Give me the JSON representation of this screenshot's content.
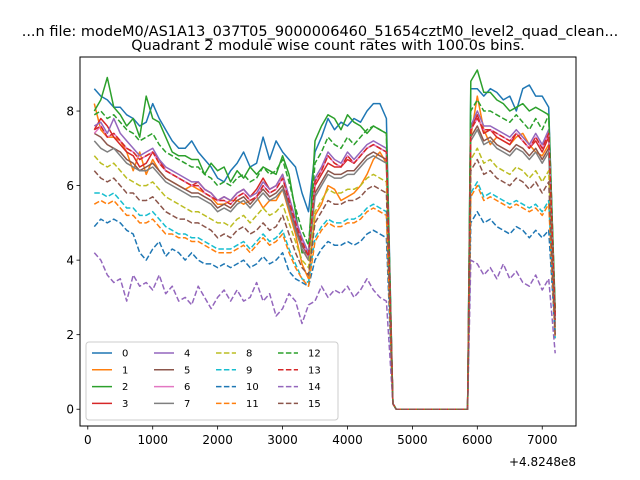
{
  "figure": {
    "suptitle": "...n file: modeM0/AS1A13_037T05_9000006460_51654cztM0_level2_quad_clean...",
    "title": "Quadrant 2 module wise count rates with 100.0s bins."
  },
  "chart_data": {
    "type": "line",
    "title": "Quadrant 2 module wise count rates with 100.0s bins.",
    "xlabel": "",
    "ylabel": "",
    "x_offset_label": "+4.8248e8",
    "xlim": [
      -120,
      7520
    ],
    "ylim": [
      -0.45,
      9.45
    ],
    "xticks": [
      0,
      1000,
      2000,
      3000,
      4000,
      5000,
      6000,
      7000
    ],
    "yticks": [
      0,
      2,
      4,
      6,
      8
    ],
    "grid": false,
    "legend": {
      "placement": "lower-left",
      "columns": 4
    },
    "x": [
      100,
      200,
      300,
      400,
      500,
      600,
      700,
      800,
      900,
      1000,
      1100,
      1200,
      1300,
      1400,
      1500,
      1600,
      1700,
      1800,
      1900,
      2000,
      2100,
      2200,
      2300,
      2400,
      2500,
      2600,
      2700,
      2800,
      2900,
      3000,
      3100,
      3200,
      3300,
      3400,
      3500,
      3600,
      3700,
      3800,
      3900,
      4000,
      4100,
      4200,
      4300,
      4400,
      4500,
      4600,
      4700,
      4750,
      4800,
      5800,
      5850,
      5900,
      6000,
      6100,
      6200,
      6300,
      6400,
      6500,
      6600,
      6700,
      6800,
      6900,
      7000,
      7100,
      7200
    ],
    "gaps": [],
    "series": [
      {
        "name": "0",
        "color": "#1f77b4",
        "dash": "solid",
        "values": [
          8.6,
          8.4,
          8.3,
          8.1,
          8.1,
          7.9,
          7.8,
          7.6,
          7.7,
          8.2,
          7.8,
          7.5,
          7.2,
          7.0,
          7.0,
          7.2,
          6.9,
          6.7,
          6.5,
          6.2,
          6.1,
          6.4,
          6.6,
          6.9,
          6.5,
          6.6,
          7.3,
          6.7,
          7.2,
          6.9,
          6.7,
          6.5,
          5.8,
          5.3,
          6.9,
          7.3,
          7.8,
          7.5,
          7.7,
          7.6,
          7.8,
          7.7,
          8.0,
          8.2,
          8.2,
          7.8,
          0.15,
          0.0,
          0.0,
          0.0,
          0.0,
          8.6,
          8.6,
          8.4,
          8.6,
          8.5,
          8.3,
          8.4,
          8.0,
          8.6,
          8.7,
          8.4,
          8.4,
          8.1,
          2.5
        ]
      },
      {
        "name": "1",
        "color": "#ff7f0e",
        "dash": "solid",
        "values": [
          8.2,
          7.5,
          7.3,
          7.3,
          7.2,
          6.9,
          6.4,
          6.9,
          6.3,
          6.7,
          6.4,
          6.2,
          6.1,
          6.0,
          5.9,
          6.0,
          5.9,
          5.8,
          5.7,
          5.5,
          5.5,
          5.6,
          5.6,
          5.5,
          5.6,
          5.7,
          5.4,
          5.6,
          5.6,
          5.9,
          5.3,
          4.7,
          3.9,
          3.5,
          5.2,
          5.5,
          6.0,
          5.9,
          5.6,
          5.7,
          5.8,
          6.0,
          6.3,
          6.7,
          6.9,
          6.6,
          0.15,
          0.0,
          0.0,
          0.0,
          0.0,
          7.3,
          8.4,
          7.5,
          7.1,
          7.3,
          7.2,
          7.1,
          7.3,
          7.4,
          7.1,
          6.9,
          6.8,
          7.1,
          2.6
        ]
      },
      {
        "name": "2",
        "color": "#2ca02c",
        "dash": "solid",
        "values": [
          8.0,
          8.3,
          8.9,
          8.1,
          7.9,
          7.6,
          7.8,
          7.3,
          8.4,
          7.8,
          7.7,
          7.3,
          6.9,
          6.8,
          6.8,
          6.7,
          6.7,
          6.3,
          6.6,
          6.4,
          6.5,
          6.1,
          6.4,
          6.2,
          6.5,
          6.3,
          6.5,
          6.4,
          6.3,
          6.8,
          6.3,
          5.3,
          4.2,
          4.2,
          7.2,
          7.6,
          7.9,
          7.8,
          7.5,
          7.9,
          7.7,
          7.6,
          7.4,
          7.6,
          7.5,
          7.4,
          0.15,
          0.0,
          0.0,
          0.0,
          0.0,
          8.8,
          9.1,
          8.5,
          8.5,
          8.3,
          8.2,
          8.0,
          8.1,
          8.2,
          8.0,
          8.1,
          8.0,
          7.9,
          2.7
        ]
      },
      {
        "name": "3",
        "color": "#d62728",
        "dash": "solid",
        "values": [
          7.5,
          7.8,
          7.6,
          7.3,
          7.1,
          6.9,
          6.8,
          6.5,
          6.6,
          6.9,
          6.7,
          6.4,
          6.3,
          6.2,
          6.1,
          6.0,
          6.1,
          5.9,
          5.8,
          5.6,
          5.7,
          5.6,
          5.8,
          5.9,
          5.7,
          5.9,
          6.2,
          5.9,
          6.0,
          6.3,
          5.7,
          5.0,
          4.3,
          4.0,
          6.0,
          6.3,
          6.6,
          6.5,
          6.5,
          6.7,
          6.6,
          6.8,
          7.0,
          7.1,
          7.0,
          6.9,
          0.15,
          0.0,
          0.0,
          0.0,
          0.0,
          7.5,
          7.9,
          7.4,
          7.5,
          7.3,
          7.2,
          7.1,
          7.4,
          7.2,
          7.0,
          7.2,
          6.9,
          7.3,
          2.5
        ]
      },
      {
        "name": "4",
        "color": "#9467bd",
        "dash": "solid",
        "values": [
          7.6,
          7.7,
          7.4,
          7.8,
          7.4,
          7.2,
          7.0,
          6.8,
          6.9,
          7.0,
          6.7,
          6.5,
          6.4,
          6.3,
          6.2,
          6.1,
          6.1,
          5.9,
          5.8,
          5.6,
          5.7,
          5.6,
          5.8,
          5.9,
          5.7,
          5.8,
          6.1,
          5.9,
          6.0,
          6.3,
          5.7,
          5.1,
          4.6,
          4.2,
          6.2,
          6.5,
          6.9,
          6.7,
          6.6,
          6.9,
          6.7,
          6.9,
          7.1,
          7.2,
          7.1,
          7.0,
          0.15,
          0.0,
          0.0,
          0.0,
          0.0,
          7.6,
          8.0,
          7.6,
          7.6,
          7.5,
          7.4,
          7.3,
          7.5,
          7.3,
          7.1,
          7.4,
          7.1,
          7.5,
          2.4
        ]
      },
      {
        "name": "5",
        "color": "#8c564b",
        "dash": "solid",
        "values": [
          7.4,
          7.3,
          7.1,
          7.0,
          6.9,
          6.7,
          6.6,
          6.4,
          6.5,
          6.6,
          6.4,
          6.2,
          6.1,
          6.0,
          5.9,
          5.8,
          5.8,
          5.7,
          5.6,
          5.4,
          5.5,
          5.4,
          5.6,
          5.7,
          5.5,
          5.7,
          5.9,
          5.7,
          5.8,
          6.0,
          5.5,
          4.9,
          4.4,
          4.1,
          5.8,
          6.1,
          6.4,
          6.3,
          6.3,
          6.4,
          6.4,
          6.6,
          6.8,
          6.9,
          6.8,
          6.7,
          0.15,
          0.0,
          0.0,
          0.0,
          0.0,
          7.3,
          7.6,
          7.2,
          7.3,
          7.1,
          7.0,
          6.9,
          7.1,
          7.0,
          6.8,
          7.0,
          6.7,
          7.0,
          2.3
        ]
      },
      {
        "name": "6",
        "color": "#e377c2",
        "dash": "solid",
        "values": [
          7.4,
          7.6,
          7.3,
          7.4,
          7.2,
          7.0,
          6.9,
          6.7,
          6.8,
          6.9,
          6.6,
          6.4,
          6.3,
          6.2,
          6.1,
          6.0,
          6.0,
          5.8,
          5.7,
          5.6,
          5.6,
          5.5,
          5.7,
          5.8,
          5.6,
          5.7,
          6.0,
          5.8,
          5.9,
          6.2,
          5.6,
          5.0,
          4.5,
          4.1,
          6.1,
          6.4,
          6.8,
          6.6,
          6.5,
          6.8,
          6.6,
          6.8,
          7.0,
          7.1,
          7.0,
          6.9,
          0.15,
          0.0,
          0.0,
          0.0,
          0.0,
          7.5,
          7.8,
          7.5,
          7.5,
          7.4,
          7.3,
          7.2,
          7.4,
          7.2,
          7.0,
          7.3,
          7.0,
          7.4,
          2.3
        ]
      },
      {
        "name": "7",
        "color": "#7f7f7f",
        "dash": "solid",
        "values": [
          7.2,
          7.0,
          6.9,
          7.0,
          6.8,
          6.6,
          6.5,
          6.4,
          6.4,
          6.5,
          6.3,
          6.1,
          6.0,
          5.9,
          5.8,
          5.7,
          5.7,
          5.6,
          5.5,
          5.3,
          5.4,
          5.3,
          5.5,
          5.6,
          5.4,
          5.6,
          5.8,
          5.6,
          5.7,
          5.9,
          5.4,
          4.8,
          4.3,
          4.0,
          5.7,
          6.0,
          6.3,
          6.2,
          6.2,
          6.3,
          6.3,
          6.5,
          6.7,
          6.8,
          6.7,
          6.6,
          0.15,
          0.0,
          0.0,
          0.0,
          0.0,
          7.2,
          7.5,
          7.1,
          7.2,
          7.0,
          6.9,
          6.8,
          7.0,
          6.9,
          6.7,
          6.9,
          6.6,
          6.9,
          2.2
        ]
      },
      {
        "name": "8",
        "color": "#bcbd22",
        "dash": "dashed",
        "values": [
          6.8,
          6.6,
          6.5,
          6.6,
          6.4,
          6.2,
          6.1,
          6.0,
          6.0,
          6.1,
          5.9,
          5.7,
          5.6,
          5.5,
          5.4,
          5.3,
          5.3,
          5.2,
          5.1,
          5.0,
          5.0,
          4.9,
          5.1,
          5.2,
          5.0,
          5.2,
          5.4,
          5.2,
          5.3,
          5.5,
          5.0,
          4.5,
          4.0,
          3.8,
          5.3,
          5.6,
          5.9,
          5.8,
          5.8,
          5.9,
          5.9,
          6.0,
          6.2,
          6.3,
          6.2,
          6.1,
          0.15,
          0.0,
          0.0,
          0.0,
          0.0,
          6.7,
          7.0,
          6.6,
          6.7,
          6.5,
          6.4,
          6.3,
          6.5,
          6.4,
          6.2,
          6.4,
          6.1,
          6.4,
          2.1
        ]
      },
      {
        "name": "9",
        "color": "#17becf",
        "dash": "dashed",
        "values": [
          5.8,
          5.8,
          5.7,
          5.8,
          5.6,
          5.4,
          5.4,
          5.2,
          5.2,
          5.3,
          5.1,
          4.9,
          4.8,
          4.7,
          4.7,
          4.6,
          4.6,
          4.5,
          4.4,
          4.3,
          4.3,
          4.3,
          4.4,
          4.5,
          4.3,
          4.5,
          4.7,
          4.5,
          4.6,
          4.8,
          4.3,
          3.9,
          3.5,
          3.4,
          4.6,
          4.9,
          5.1,
          5.0,
          5.0,
          5.1,
          5.1,
          5.2,
          5.4,
          5.5,
          5.4,
          5.3,
          0.15,
          0.0,
          0.0,
          0.0,
          0.0,
          5.8,
          6.1,
          5.7,
          5.8,
          5.7,
          5.6,
          5.5,
          5.6,
          5.5,
          5.4,
          5.5,
          5.3,
          5.6,
          1.9
        ]
      },
      {
        "name": "10",
        "color": "#1f77b4",
        "dash": "dashed",
        "values": [
          4.9,
          5.1,
          5.0,
          5.1,
          5.0,
          4.8,
          4.7,
          4.2,
          4.0,
          4.3,
          4.5,
          4.1,
          4.3,
          4.2,
          4.0,
          4.2,
          4.0,
          3.9,
          3.9,
          3.8,
          3.9,
          3.8,
          3.9,
          4.0,
          3.8,
          3.9,
          4.1,
          3.9,
          4.0,
          4.2,
          3.7,
          3.5,
          3.4,
          3.3,
          4.0,
          4.3,
          4.5,
          4.4,
          4.4,
          4.5,
          4.4,
          4.5,
          4.7,
          4.8,
          4.7,
          4.6,
          0.15,
          0.0,
          0.0,
          0.0,
          0.0,
          5.0,
          5.3,
          5.0,
          5.1,
          4.9,
          4.8,
          4.7,
          4.9,
          4.8,
          4.6,
          4.8,
          4.6,
          4.8,
          2.0
        ]
      },
      {
        "name": "11",
        "color": "#ff7f0e",
        "dash": "dashed",
        "values": [
          5.5,
          5.6,
          5.5,
          5.6,
          5.4,
          5.2,
          5.2,
          5.0,
          5.0,
          5.1,
          4.9,
          4.7,
          4.7,
          4.6,
          4.6,
          4.5,
          4.5,
          4.4,
          4.3,
          4.2,
          4.2,
          4.2,
          4.3,
          4.4,
          4.2,
          4.4,
          4.6,
          4.4,
          4.5,
          4.7,
          4.2,
          3.8,
          3.5,
          3.3,
          4.5,
          4.8,
          5.0,
          4.9,
          4.9,
          5.0,
          5.0,
          5.1,
          5.3,
          5.4,
          5.3,
          5.2,
          0.15,
          0.0,
          0.0,
          0.0,
          0.0,
          5.7,
          6.0,
          5.6,
          5.7,
          5.6,
          5.5,
          5.4,
          5.5,
          5.4,
          5.3,
          5.4,
          5.2,
          5.5,
          1.9
        ]
      },
      {
        "name": "12",
        "color": "#2ca02c",
        "dash": "dashed",
        "values": [
          7.9,
          8.0,
          7.8,
          7.9,
          7.7,
          7.5,
          7.4,
          7.2,
          7.3,
          7.4,
          7.1,
          6.9,
          6.8,
          6.7,
          6.6,
          6.5,
          6.5,
          6.3,
          6.2,
          6.0,
          6.1,
          6.0,
          6.2,
          6.3,
          6.1,
          6.2,
          6.5,
          6.3,
          6.4,
          6.7,
          6.1,
          5.4,
          4.8,
          4.4,
          6.6,
          6.9,
          7.3,
          7.1,
          7.0,
          7.3,
          7.1,
          7.3,
          7.5,
          7.6,
          7.5,
          7.4,
          0.15,
          0.0,
          0.0,
          0.0,
          0.0,
          8.0,
          8.3,
          8.0,
          8.0,
          7.9,
          7.8,
          7.7,
          7.9,
          7.7,
          7.5,
          7.8,
          7.5,
          7.9,
          2.6
        ]
      },
      {
        "name": "13",
        "color": "#d62728",
        "dash": "dashed",
        "values": [
          7.5,
          7.6,
          7.3,
          7.4,
          7.2,
          7.0,
          6.9,
          6.7,
          6.8,
          6.9,
          6.6,
          6.4,
          6.3,
          6.2,
          6.1,
          6.0,
          6.0,
          5.8,
          5.7,
          5.6,
          5.6,
          5.5,
          5.7,
          5.8,
          5.6,
          5.7,
          6.0,
          5.8,
          5.9,
          6.2,
          5.6,
          5.0,
          4.5,
          4.1,
          6.1,
          6.4,
          6.8,
          6.6,
          6.5,
          6.8,
          6.6,
          6.8,
          7.0,
          7.1,
          7.0,
          6.9,
          0.15,
          0.0,
          0.0,
          0.0,
          0.0,
          7.5,
          7.8,
          7.5,
          7.5,
          7.4,
          7.3,
          7.2,
          7.4,
          7.2,
          7.0,
          7.3,
          7.0,
          7.4,
          2.4
        ]
      },
      {
        "name": "14",
        "color": "#9467bd",
        "dash": "dashed",
        "values": [
          4.2,
          4.0,
          3.6,
          3.4,
          3.5,
          2.9,
          3.6,
          3.3,
          3.4,
          3.2,
          3.6,
          3.1,
          3.3,
          2.9,
          3.0,
          2.8,
          3.3,
          3.0,
          2.7,
          3.0,
          3.2,
          2.9,
          3.2,
          2.9,
          3.0,
          3.4,
          2.9,
          3.1,
          2.5,
          2.7,
          3.1,
          2.9,
          2.3,
          2.8,
          2.9,
          3.3,
          3.0,
          3.2,
          3.1,
          3.3,
          3.0,
          3.2,
          3.5,
          3.2,
          3.0,
          2.9,
          0.15,
          0.0,
          0.0,
          0.0,
          0.0,
          4.0,
          3.9,
          3.6,
          3.8,
          3.5,
          3.9,
          3.5,
          3.7,
          3.4,
          3.3,
          3.6,
          3.2,
          3.5,
          1.5
        ]
      },
      {
        "name": "15",
        "color": "#8c564b",
        "dash": "dashed",
        "values": [
          6.4,
          6.2,
          6.1,
          6.2,
          6.0,
          5.8,
          5.8,
          5.6,
          5.6,
          5.7,
          5.5,
          5.3,
          5.2,
          5.1,
          5.1,
          5.0,
          5.0,
          4.9,
          4.8,
          4.6,
          4.7,
          4.6,
          4.8,
          4.9,
          4.7,
          4.8,
          5.0,
          4.8,
          4.9,
          5.2,
          4.7,
          4.2,
          3.8,
          3.6,
          5.0,
          5.3,
          5.6,
          5.5,
          5.5,
          5.6,
          5.6,
          5.7,
          5.9,
          6.0,
          5.9,
          5.8,
          0.15,
          0.0,
          0.0,
          0.0,
          0.0,
          6.4,
          6.7,
          6.3,
          6.4,
          6.2,
          6.1,
          6.0,
          6.2,
          6.1,
          5.9,
          6.1,
          5.8,
          6.1,
          2.0
        ]
      }
    ]
  }
}
